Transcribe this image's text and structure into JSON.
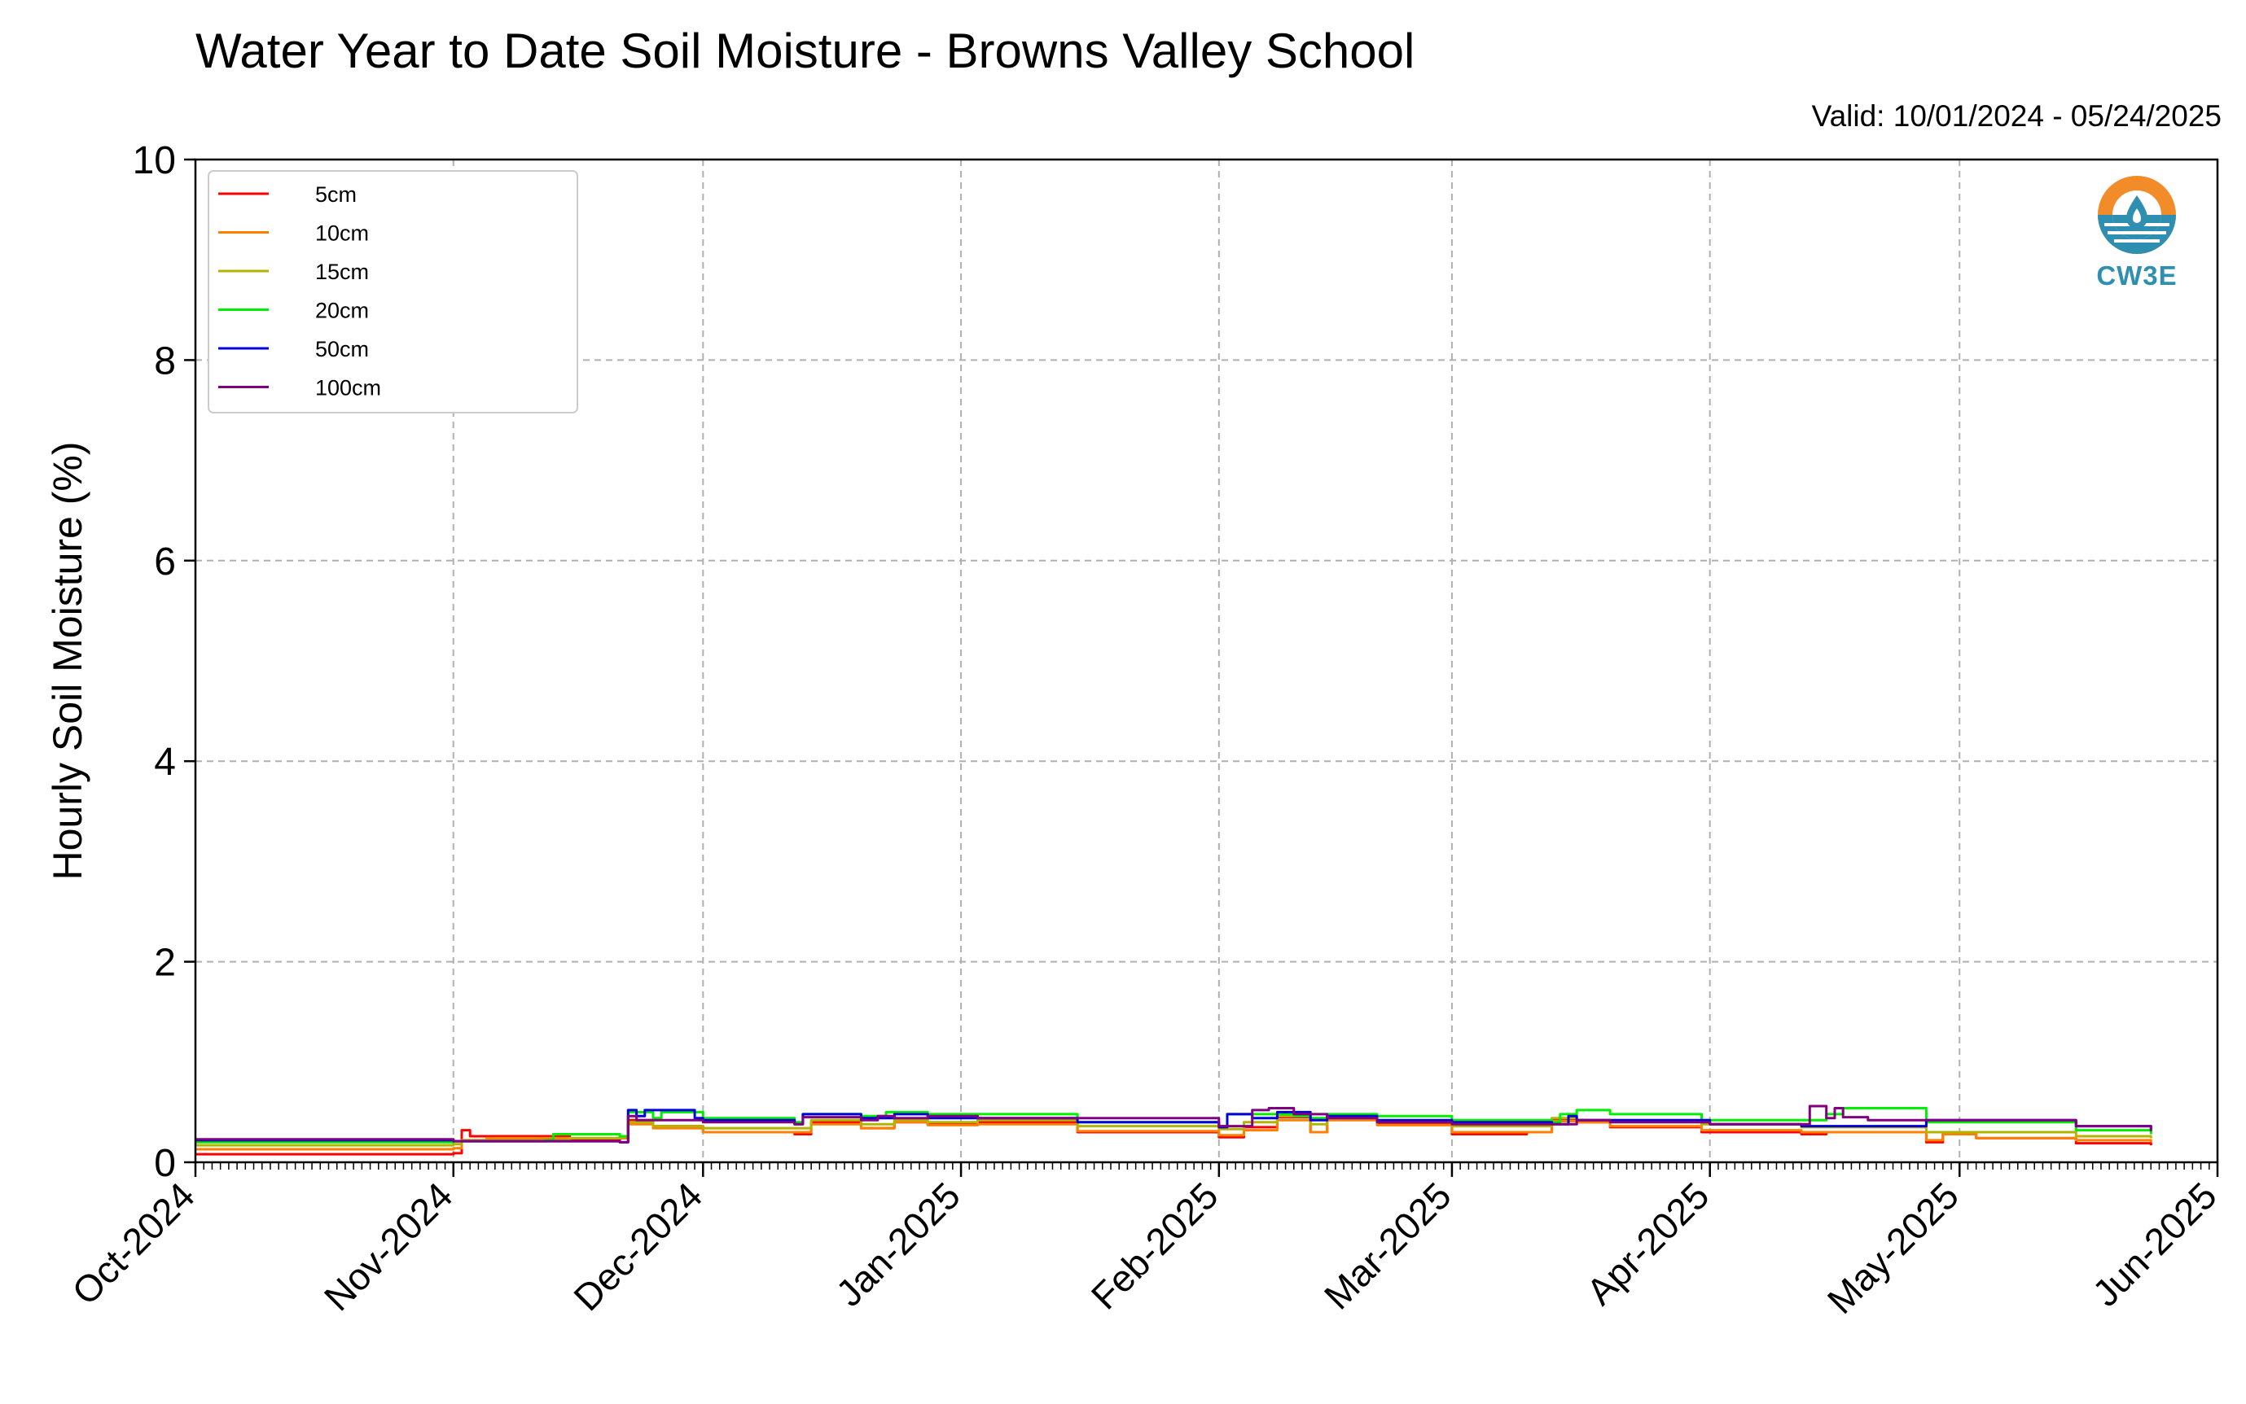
{
  "header": {
    "title": "Water Year to Date Soil Moisture - Browns Valley School",
    "valid": "Valid: 10/01/2024 - 05/24/2025"
  },
  "logo": {
    "text": "CW3E",
    "icon": "water-drop-logo-icon"
  },
  "colors": {
    "grid": "#b0b0b0",
    "logo_orange": "#f28c28",
    "logo_blue": "#2f8fb0"
  },
  "chart_data": {
    "type": "line",
    "title": "Water Year to Date Soil Moisture - Browns Valley School",
    "xlabel": "",
    "ylabel": "Hourly Soil Moisture (%)",
    "xlim": [
      "2024-10-01",
      "2025-06-01"
    ],
    "ylim": [
      0,
      10
    ],
    "y_ticks": [
      0,
      2,
      4,
      6,
      8,
      10
    ],
    "x_ticks": [
      {
        "date": "2024-10-01",
        "label": "Oct-2024"
      },
      {
        "date": "2024-11-01",
        "label": "Nov-2024"
      },
      {
        "date": "2024-12-01",
        "label": "Dec-2024"
      },
      {
        "date": "2025-01-01",
        "label": "Jan-2025"
      },
      {
        "date": "2025-02-01",
        "label": "Feb-2025"
      },
      {
        "date": "2025-03-01",
        "label": "Mar-2025"
      },
      {
        "date": "2025-04-01",
        "label": "Apr-2025"
      },
      {
        "date": "2025-05-01",
        "label": "May-2025"
      },
      {
        "date": "2025-06-01",
        "label": "Jun-2025"
      }
    ],
    "grid": true,
    "legend_position": "top-left",
    "series": [
      {
        "name": "5cm",
        "color": "#ff0000",
        "x": [
          "2024-10-01",
          "2024-11-01",
          "2024-11-02",
          "2024-11-03",
          "2024-11-15",
          "2024-11-21",
          "2024-11-22",
          "2024-11-25",
          "2024-12-01",
          "2024-12-12",
          "2024-12-14",
          "2024-12-20",
          "2024-12-24",
          "2024-12-28",
          "2025-01-03",
          "2025-01-15",
          "2025-02-01",
          "2025-02-04",
          "2025-02-08",
          "2025-02-12",
          "2025-02-14",
          "2025-02-20",
          "2025-03-01",
          "2025-03-10",
          "2025-03-13",
          "2025-03-16",
          "2025-03-20",
          "2025-03-31",
          "2025-04-12",
          "2025-04-15",
          "2025-04-27",
          "2025-04-29",
          "2025-05-03",
          "2025-05-15",
          "2025-05-24"
        ],
        "y": [
          0.08,
          0.09,
          0.32,
          0.26,
          0.22,
          0.24,
          0.42,
          0.36,
          0.3,
          0.28,
          0.4,
          0.34,
          0.4,
          0.38,
          0.4,
          0.3,
          0.25,
          0.35,
          0.45,
          0.3,
          0.45,
          0.38,
          0.28,
          0.3,
          0.42,
          0.4,
          0.35,
          0.3,
          0.28,
          0.3,
          0.2,
          0.28,
          0.24,
          0.19,
          0.17
        ]
      },
      {
        "name": "10cm",
        "color": "#ff8000",
        "x": [
          "2024-10-01",
          "2024-11-01",
          "2024-11-02",
          "2024-11-05",
          "2024-11-15",
          "2024-11-21",
          "2024-11-22",
          "2024-11-25",
          "2024-12-01",
          "2024-12-12",
          "2024-12-14",
          "2024-12-20",
          "2024-12-24",
          "2024-12-28",
          "2025-01-03",
          "2025-01-15",
          "2025-02-01",
          "2025-02-04",
          "2025-02-08",
          "2025-02-12",
          "2025-02-14",
          "2025-02-20",
          "2025-03-01",
          "2025-03-13",
          "2025-03-16",
          "2025-03-20",
          "2025-03-31",
          "2025-04-12",
          "2025-04-27",
          "2025-04-29",
          "2025-05-03",
          "2025-05-15",
          "2025-05-24"
        ],
        "y": [
          0.13,
          0.14,
          0.22,
          0.24,
          0.24,
          0.24,
          0.38,
          0.34,
          0.3,
          0.3,
          0.38,
          0.34,
          0.4,
          0.37,
          0.38,
          0.31,
          0.27,
          0.32,
          0.42,
          0.3,
          0.42,
          0.37,
          0.3,
          0.41,
          0.4,
          0.36,
          0.32,
          0.3,
          0.22,
          0.28,
          0.24,
          0.22,
          0.2
        ]
      },
      {
        "name": "15cm",
        "color": "#b3b300",
        "x": [
          "2024-10-01",
          "2024-11-01",
          "2024-11-02",
          "2024-11-15",
          "2024-11-21",
          "2024-11-22",
          "2024-11-25",
          "2024-12-01",
          "2024-12-12",
          "2024-12-14",
          "2024-12-20",
          "2024-12-24",
          "2024-12-28",
          "2025-01-03",
          "2025-01-15",
          "2025-02-01",
          "2025-02-04",
          "2025-02-08",
          "2025-02-12",
          "2025-02-14",
          "2025-02-20",
          "2025-03-01",
          "2025-03-13",
          "2025-03-16",
          "2025-03-20",
          "2025-03-31",
          "2025-04-12",
          "2025-04-27",
          "2025-05-15",
          "2025-05-24"
        ],
        "y": [
          0.17,
          0.18,
          0.22,
          0.24,
          0.25,
          0.4,
          0.36,
          0.34,
          0.34,
          0.42,
          0.38,
          0.42,
          0.4,
          0.42,
          0.36,
          0.33,
          0.4,
          0.46,
          0.38,
          0.44,
          0.4,
          0.36,
          0.44,
          0.42,
          0.4,
          0.38,
          0.35,
          0.3,
          0.26,
          0.24
        ]
      },
      {
        "name": "20cm",
        "color": "#00ee00",
        "x": [
          "2024-10-01",
          "2024-11-01",
          "2024-11-02",
          "2024-11-12",
          "2024-11-13",
          "2024-11-21",
          "2024-11-22",
          "2024-11-25",
          "2024-11-26",
          "2024-12-01",
          "2024-12-12",
          "2024-12-13",
          "2024-12-20",
          "2024-12-23",
          "2024-12-28",
          "2025-01-03",
          "2025-01-15",
          "2025-02-01",
          "2025-02-02",
          "2025-02-04",
          "2025-02-10",
          "2025-02-12",
          "2025-02-14",
          "2025-02-20",
          "2025-03-01",
          "2025-03-13",
          "2025-03-14",
          "2025-03-16",
          "2025-03-20",
          "2025-03-31",
          "2025-04-12",
          "2025-04-15",
          "2025-04-17",
          "2025-04-27",
          "2025-05-15",
          "2025-05-24"
        ],
        "y": [
          0.2,
          0.21,
          0.21,
          0.22,
          0.28,
          0.26,
          0.5,
          0.44,
          0.5,
          0.44,
          0.4,
          0.48,
          0.46,
          0.5,
          0.48,
          0.48,
          0.4,
          0.36,
          0.48,
          0.48,
          0.46,
          0.44,
          0.48,
          0.46,
          0.42,
          0.4,
          0.48,
          0.52,
          0.48,
          0.42,
          0.42,
          0.48,
          0.54,
          0.4,
          0.32,
          0.28
        ]
      },
      {
        "name": "50cm",
        "color": "#0000dd",
        "x": [
          "2024-10-01",
          "2024-11-01",
          "2024-11-21",
          "2024-11-22",
          "2024-11-23",
          "2024-11-24",
          "2024-11-30",
          "2024-12-01",
          "2024-12-12",
          "2024-12-13",
          "2024-12-20",
          "2024-12-24",
          "2024-12-28",
          "2025-01-03",
          "2025-01-15",
          "2025-02-01",
          "2025-02-02",
          "2025-02-05",
          "2025-02-08",
          "2025-02-12",
          "2025-02-14",
          "2025-02-20",
          "2025-03-01",
          "2025-03-13",
          "2025-03-15",
          "2025-03-16",
          "2025-03-20",
          "2025-04-01",
          "2025-04-12",
          "2025-04-27",
          "2025-05-15",
          "2025-05-24"
        ],
        "y": [
          0.22,
          0.21,
          0.2,
          0.52,
          0.46,
          0.52,
          0.44,
          0.42,
          0.38,
          0.48,
          0.44,
          0.48,
          0.44,
          0.44,
          0.4,
          0.35,
          0.48,
          0.44,
          0.5,
          0.42,
          0.46,
          0.42,
          0.4,
          0.38,
          0.46,
          0.42,
          0.42,
          0.38,
          0.36,
          0.42,
          0.36,
          0.32
        ]
      },
      {
        "name": "100cm",
        "color": "#800080",
        "x": [
          "2024-10-01",
          "2024-11-01",
          "2024-11-21",
          "2024-11-22",
          "2024-11-23",
          "2024-12-01",
          "2024-12-12",
          "2024-12-13",
          "2024-12-20",
          "2024-12-22",
          "2024-12-24",
          "2024-12-28",
          "2025-01-03",
          "2025-02-01",
          "2025-02-05",
          "2025-02-07",
          "2025-02-10",
          "2025-02-14",
          "2025-02-20",
          "2025-03-01",
          "2025-03-13",
          "2025-03-16",
          "2025-03-20",
          "2025-04-01",
          "2025-04-12",
          "2025-04-13",
          "2025-04-15",
          "2025-04-16",
          "2025-04-17",
          "2025-04-20",
          "2025-05-15",
          "2025-05-24"
        ],
        "y": [
          0.23,
          0.21,
          0.2,
          0.46,
          0.42,
          0.4,
          0.38,
          0.45,
          0.42,
          0.46,
          0.44,
          0.46,
          0.44,
          0.36,
          0.52,
          0.54,
          0.48,
          0.44,
          0.4,
          0.38,
          0.38,
          0.42,
          0.4,
          0.38,
          0.38,
          0.56,
          0.44,
          0.54,
          0.45,
          0.42,
          0.36,
          0.31
        ]
      }
    ]
  }
}
